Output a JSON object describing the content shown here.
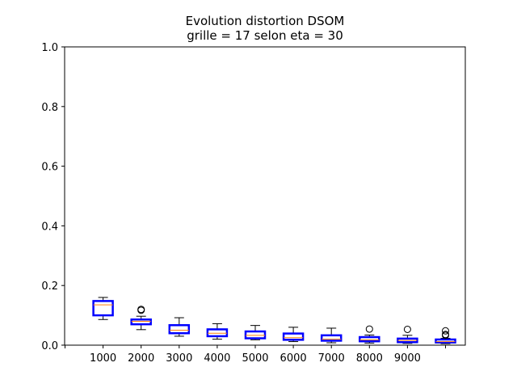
{
  "chart_data": {
    "type": "box",
    "title": "Evolution distortion DSOM",
    "subtitle": "grille = 17 selon eta = 30",
    "xlabel": "",
    "ylabel": "",
    "ylim": [
      0,
      1.0
    ],
    "y_ticks": [
      "0.0",
      "0.2",
      "0.4",
      "0.6",
      "0.8",
      "1.0"
    ],
    "x_tick_labels": [
      "1000",
      "2000",
      "3000",
      "4000",
      "5000",
      "6000",
      "7000",
      "8000",
      "9000"
    ],
    "x_tick_count": 11,
    "grid": false,
    "legend": "none",
    "colors": {
      "box": "#0000ff",
      "median": "#ff7f0e",
      "whisker": "#000000",
      "outlier": "#000000"
    },
    "boxes": [
      {
        "q1": 0.1,
        "median": 0.135,
        "q3": 0.148,
        "whisker_low": 0.086,
        "whisker_high": 0.16,
        "outliers": []
      },
      {
        "q1": 0.07,
        "median": 0.08,
        "q3": 0.086,
        "whisker_low": 0.052,
        "whisker_high": 0.097,
        "outliers": [
          0.117,
          0.12
        ]
      },
      {
        "q1": 0.04,
        "median": 0.05,
        "q3": 0.067,
        "whisker_low": 0.03,
        "whisker_high": 0.092,
        "outliers": []
      },
      {
        "q1": 0.03,
        "median": 0.04,
        "q3": 0.053,
        "whisker_low": 0.02,
        "whisker_high": 0.072,
        "outliers": []
      },
      {
        "q1": 0.023,
        "median": 0.033,
        "q3": 0.046,
        "whisker_low": 0.018,
        "whisker_high": 0.066,
        "outliers": []
      },
      {
        "q1": 0.018,
        "median": 0.025,
        "q3": 0.039,
        "whisker_low": 0.012,
        "whisker_high": 0.06,
        "outliers": []
      },
      {
        "q1": 0.015,
        "median": 0.02,
        "q3": 0.033,
        "whisker_low": 0.008,
        "whisker_high": 0.057,
        "outliers": []
      },
      {
        "q1": 0.013,
        "median": 0.018,
        "q3": 0.027,
        "whisker_low": 0.007,
        "whisker_high": 0.034,
        "outliers": [
          0.054
        ]
      },
      {
        "q1": 0.01,
        "median": 0.016,
        "q3": 0.022,
        "whisker_low": 0.006,
        "whisker_high": 0.033,
        "outliers": [
          0.053
        ]
      },
      {
        "q1": 0.009,
        "median": 0.012,
        "q3": 0.019,
        "whisker_low": 0.005,
        "whisker_high": 0.023,
        "outliers": [
          0.033,
          0.036,
          0.048
        ]
      }
    ]
  }
}
